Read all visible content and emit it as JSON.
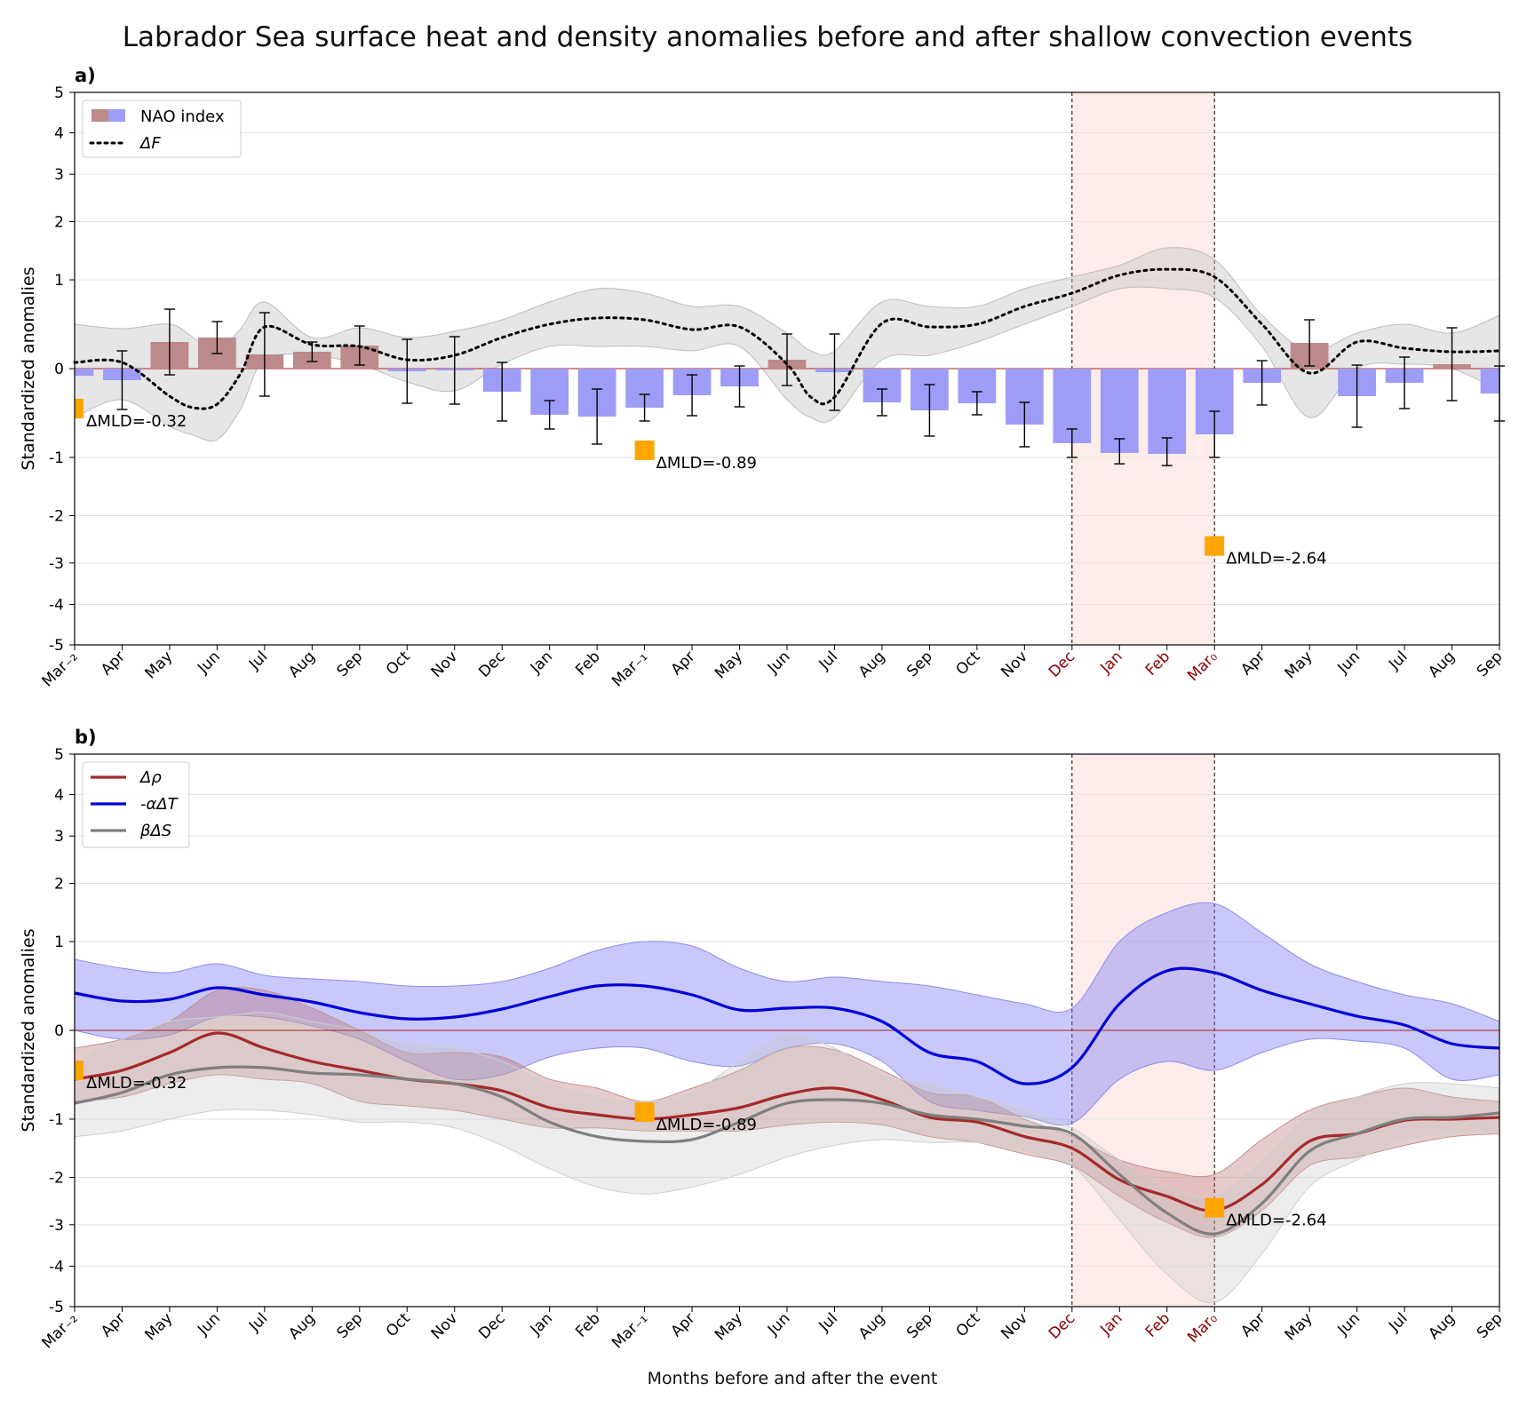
{
  "title": "Labrador Sea surface heat and density anomalies before and after shallow convection events",
  "xlabel": "Months before and after the event",
  "panel_a_label": "a)",
  "panel_b_label": "b)",
  "ylabel": "Standardized anomalies",
  "colors": {
    "nao_pos": "#bc8a8a",
    "nao_neg": "#9d9cf6",
    "delta_f": "#000000",
    "delta_rho": "#a52a2a",
    "alpha_t": "#0000d8",
    "beta_s": "#7f7f7f",
    "mld_marker": "#ffa500",
    "event_shade": "#fdecea",
    "event_tick": "#8b0000",
    "zero_line": "#b22222"
  },
  "chart_data": [
    {
      "type": "bar",
      "panel": "a)",
      "ylabel": "Standardized anomalies",
      "yticks": [
        "5",
        "4",
        "3",
        "2",
        "1",
        "0",
        "-1",
        "-2",
        "-3",
        "-4",
        "-5"
      ],
      "categories": [
        "Mar₋₂",
        "Apr",
        "May",
        "Jun",
        "Jul",
        "Aug",
        "Sep",
        "Oct",
        "Nov",
        "Dec",
        "Jan",
        "Feb",
        "Mar₋₁",
        "Apr",
        "May",
        "Jun",
        "Jul",
        "Aug",
        "Sep",
        "Oct",
        "Nov",
        "Dec",
        "Jan",
        "Feb",
        "Mar₀",
        "Apr",
        "May",
        "Jun",
        "Jul",
        "Aug",
        "Sep"
      ],
      "event_months": [
        "Dec",
        "Jan",
        "Feb",
        "Mar₀"
      ],
      "event_shade_x": [
        21,
        24
      ],
      "legend": [
        {
          "label": "NAO index",
          "kind": "bar"
        },
        {
          "label": "ΔF",
          "kind": "dotted"
        }
      ],
      "nao_index": {
        "values": [
          -0.08,
          -0.13,
          0.3,
          0.35,
          0.16,
          0.19,
          0.26,
          -0.03,
          -0.02,
          -0.26,
          -0.52,
          -0.54,
          -0.44,
          -0.3,
          -0.2,
          0.1,
          -0.04,
          -0.38,
          -0.47,
          -0.39,
          -0.63,
          -0.84,
          -0.95,
          -0.96,
          -0.74,
          -0.16,
          0.29,
          -0.31,
          -0.16,
          0.05,
          -0.28
        ],
        "err": [
          0.0,
          0.33,
          0.37,
          0.18,
          0.47,
          0.11,
          0.22,
          0.36,
          0.38,
          0.33,
          0.16,
          0.31,
          0.15,
          0.23,
          0.23,
          0.29,
          0.43,
          0.15,
          0.29,
          0.13,
          0.25,
          0.16,
          0.16,
          0.18,
          0.26,
          0.25,
          0.26,
          0.35,
          0.29,
          0.41,
          0.31
        ]
      },
      "delta_f": {
        "x": [
          0,
          1,
          2,
          2.5,
          3,
          3.5,
          4,
          5,
          6,
          7,
          8,
          9,
          10,
          11,
          12,
          13,
          14,
          15,
          15.5,
          16,
          17,
          18,
          19,
          20,
          21,
          22,
          23,
          24,
          25,
          26,
          27,
          28,
          29,
          30
        ],
        "y": [
          0.07,
          0.07,
          -0.31,
          -0.44,
          -0.4,
          -0.05,
          0.47,
          0.27,
          0.25,
          0.1,
          0.15,
          0.35,
          0.5,
          0.57,
          0.55,
          0.44,
          0.47,
          0.05,
          -0.32,
          -0.32,
          0.51,
          0.47,
          0.5,
          0.7,
          0.85,
          1.08,
          1.18,
          1.05,
          0.5,
          -0.05,
          0.3,
          0.23,
          0.19,
          0.2
        ],
        "upper": [
          0.5,
          0.45,
          0.5,
          0.35,
          0.2,
          0.45,
          0.75,
          0.35,
          0.46,
          0.35,
          0.42,
          0.55,
          0.75,
          0.9,
          0.85,
          0.7,
          0.7,
          0.4,
          0.2,
          0.2,
          0.75,
          0.7,
          0.7,
          0.9,
          1.05,
          1.25,
          1.55,
          1.35,
          0.6,
          0.2,
          0.4,
          0.5,
          0.4,
          0.6
        ],
        "lower": [
          -0.55,
          -0.35,
          -0.65,
          -0.75,
          -0.8,
          -0.45,
          0.1,
          0.15,
          0.05,
          -0.15,
          -0.25,
          0.05,
          0.25,
          0.25,
          0.25,
          0.2,
          0.25,
          -0.35,
          -0.55,
          -0.55,
          0.1,
          0.15,
          0.3,
          0.5,
          0.7,
          0.9,
          0.9,
          0.8,
          0.25,
          -0.55,
          0.0,
          0.05,
          0.0,
          -0.25
        ]
      },
      "mld_markers": [
        {
          "x": 0,
          "y": -0.45,
          "label": "ΔMLD=-0.32"
        },
        {
          "x": 12,
          "y": -0.92,
          "label": "ΔMLD=-0.89"
        },
        {
          "x": 24,
          "y": -2.64,
          "label": "ΔMLD=-2.64"
        }
      ]
    },
    {
      "type": "line",
      "panel": "b)",
      "ylabel": "Standardized anomalies",
      "xlabel": "Months before and after the event",
      "yticks": [
        "5",
        "4",
        "3",
        "2",
        "1",
        "0",
        "-1",
        "-2",
        "-3",
        "-4",
        "-5"
      ],
      "categories": [
        "Mar₋₂",
        "Apr",
        "May",
        "Jun",
        "Jul",
        "Aug",
        "Sep",
        "Oct",
        "Nov",
        "Dec",
        "Jan",
        "Feb",
        "Mar₋₁",
        "Apr",
        "May",
        "Jun",
        "Jul",
        "Aug",
        "Sep",
        "Oct",
        "Nov",
        "Dec",
        "Jan",
        "Feb",
        "Mar₀",
        "Apr",
        "May",
        "Jun",
        "Jul",
        "Aug",
        "Sep"
      ],
      "event_months": [
        "Dec",
        "Jan",
        "Feb",
        "Mar₀"
      ],
      "event_shade_x": [
        21,
        24
      ],
      "legend": [
        {
          "label": "Δρ",
          "key": "delta_rho"
        },
        {
          "label": "-αΔT",
          "key": "alpha_t"
        },
        {
          "label": "βΔS",
          "key": "beta_s"
        }
      ],
      "x": [
        0,
        1,
        2,
        3,
        4,
        5,
        6,
        7,
        8,
        9,
        10,
        11,
        12,
        13,
        14,
        15,
        16,
        17,
        18,
        19,
        20,
        21,
        22,
        23,
        24,
        25,
        26,
        27,
        28,
        29,
        30
      ],
      "series": [
        {
          "name": "-αΔT",
          "key": "alpha_t",
          "values": [
            0.42,
            0.33,
            0.35,
            0.48,
            0.4,
            0.32,
            0.2,
            0.13,
            0.15,
            0.24,
            0.38,
            0.5,
            0.5,
            0.4,
            0.23,
            0.25,
            0.25,
            0.1,
            -0.25,
            -0.35,
            -0.6,
            -0.42,
            0.3,
            0.67,
            0.65,
            0.45,
            0.3,
            0.16,
            0.06,
            -0.15,
            -0.2
          ],
          "upper": [
            0.8,
            0.7,
            0.65,
            0.75,
            0.62,
            0.58,
            0.55,
            0.5,
            0.5,
            0.55,
            0.7,
            0.9,
            1.0,
            0.95,
            0.7,
            0.55,
            0.6,
            0.55,
            0.5,
            0.4,
            0.3,
            0.25,
            1.0,
            1.5,
            1.65,
            1.15,
            0.75,
            0.55,
            0.4,
            0.3,
            0.1
          ],
          "lower": [
            0.0,
            -0.1,
            -0.05,
            0.15,
            0.15,
            0.05,
            -0.1,
            -0.35,
            -0.55,
            -0.5,
            -0.3,
            -0.2,
            -0.2,
            -0.35,
            -0.4,
            -0.2,
            -0.15,
            -0.35,
            -0.8,
            -0.9,
            -0.97,
            -1.07,
            -0.55,
            -0.35,
            -0.45,
            -0.25,
            -0.1,
            -0.12,
            -0.2,
            -0.55,
            -0.5
          ]
        },
        {
          "name": "Δρ",
          "key": "delta_rho",
          "values": [
            -0.55,
            -0.45,
            -0.25,
            -0.03,
            -0.2,
            -0.35,
            -0.45,
            -0.55,
            -0.6,
            -0.68,
            -0.87,
            -0.95,
            -1.0,
            -0.95,
            -0.87,
            -0.72,
            -0.65,
            -0.78,
            -0.98,
            -1.05,
            -1.3,
            -1.5,
            -2.05,
            -2.4,
            -2.7,
            -2.15,
            -1.38,
            -1.25,
            -1.02,
            -1.0,
            -0.98
          ],
          "upper": [
            -0.2,
            -0.1,
            0.1,
            0.45,
            0.45,
            0.25,
            0.0,
            -0.25,
            -0.25,
            -0.3,
            -0.55,
            -0.65,
            -0.8,
            -0.65,
            -0.45,
            -0.2,
            -0.22,
            -0.45,
            -0.7,
            -0.75,
            -1.0,
            -1.3,
            -1.7,
            -1.9,
            -1.95,
            -1.35,
            -0.9,
            -0.75,
            -0.65,
            -0.75,
            -0.8
          ],
          "lower": [
            -0.8,
            -0.75,
            -0.6,
            -0.5,
            -0.55,
            -0.6,
            -0.8,
            -0.85,
            -0.9,
            -1.0,
            -1.15,
            -1.15,
            -1.2,
            -1.2,
            -1.2,
            -1.1,
            -1.05,
            -1.1,
            -1.3,
            -1.4,
            -1.6,
            -1.8,
            -2.4,
            -2.95,
            -3.3,
            -2.7,
            -1.8,
            -1.65,
            -1.45,
            -1.3,
            -1.25
          ]
        },
        {
          "name": "βΔS",
          "key": "beta_s",
          "values": [
            -0.82,
            -0.7,
            -0.5,
            -0.42,
            -0.42,
            -0.48,
            -0.5,
            -0.55,
            -0.6,
            -0.75,
            -1.05,
            -1.3,
            -1.38,
            -1.35,
            -1.05,
            -0.82,
            -0.78,
            -0.82,
            -0.95,
            -1.0,
            -1.12,
            -1.25,
            -1.95,
            -2.75,
            -3.22,
            -2.55,
            -1.55,
            -1.25,
            -1.0,
            -0.98,
            -0.93
          ],
          "upper": [
            -0.35,
            -0.1,
            0.1,
            0.15,
            0.2,
            0.1,
            0.0,
            -0.15,
            -0.2,
            -0.35,
            -0.6,
            -0.75,
            -0.8,
            -0.7,
            -0.35,
            -0.05,
            -0.2,
            -0.5,
            -0.6,
            -0.75,
            -0.9,
            -1.15,
            -1.7,
            -2.2,
            -2.4,
            -1.7,
            -0.95,
            -0.75,
            -0.6,
            -0.6,
            -0.65
          ],
          "lower": [
            -1.3,
            -1.2,
            -1.0,
            -0.9,
            -0.9,
            -0.95,
            -1.05,
            -1.05,
            -1.15,
            -1.45,
            -1.85,
            -2.2,
            -2.35,
            -2.2,
            -1.95,
            -1.65,
            -1.45,
            -1.35,
            -1.4,
            -1.4,
            -1.55,
            -1.8,
            -2.9,
            -4.2,
            -4.9,
            -3.7,
            -2.2,
            -1.7,
            -1.35,
            -1.25,
            -1.2
          ]
        }
      ],
      "mld_markers": [
        {
          "x": 0,
          "y": -0.45,
          "label": "ΔMLD=-0.32"
        },
        {
          "x": 12,
          "y": -0.92,
          "label": "ΔMLD=-0.89"
        },
        {
          "x": 24,
          "y": -2.64,
          "label": "ΔMLD=-2.64"
        }
      ]
    }
  ]
}
